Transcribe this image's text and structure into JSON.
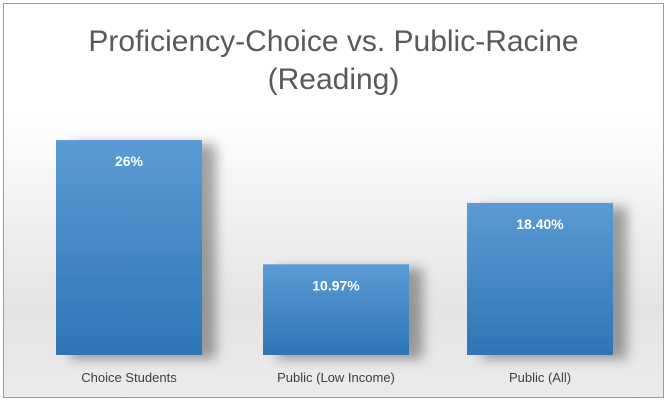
{
  "chart_data": {
    "type": "bar",
    "title": [
      "Proficiency-Choice vs. Public-Racine",
      "(Reading)"
    ],
    "categories": [
      "Choice Students",
      "Public (Low Income)",
      "Public (All)"
    ],
    "values": [
      26,
      10.97,
      18.4
    ],
    "data_labels": [
      "26%",
      "10.97%",
      "18.40%"
    ],
    "ylim": [
      0,
      30
    ],
    "xlabel": "",
    "ylabel": "",
    "grid": false,
    "legend": "none",
    "colors": {
      "bar_top": "#5b9bd5",
      "bar_bottom": "#2e75b6",
      "label": "#ffffff",
      "axis_text": "#404040"
    }
  }
}
